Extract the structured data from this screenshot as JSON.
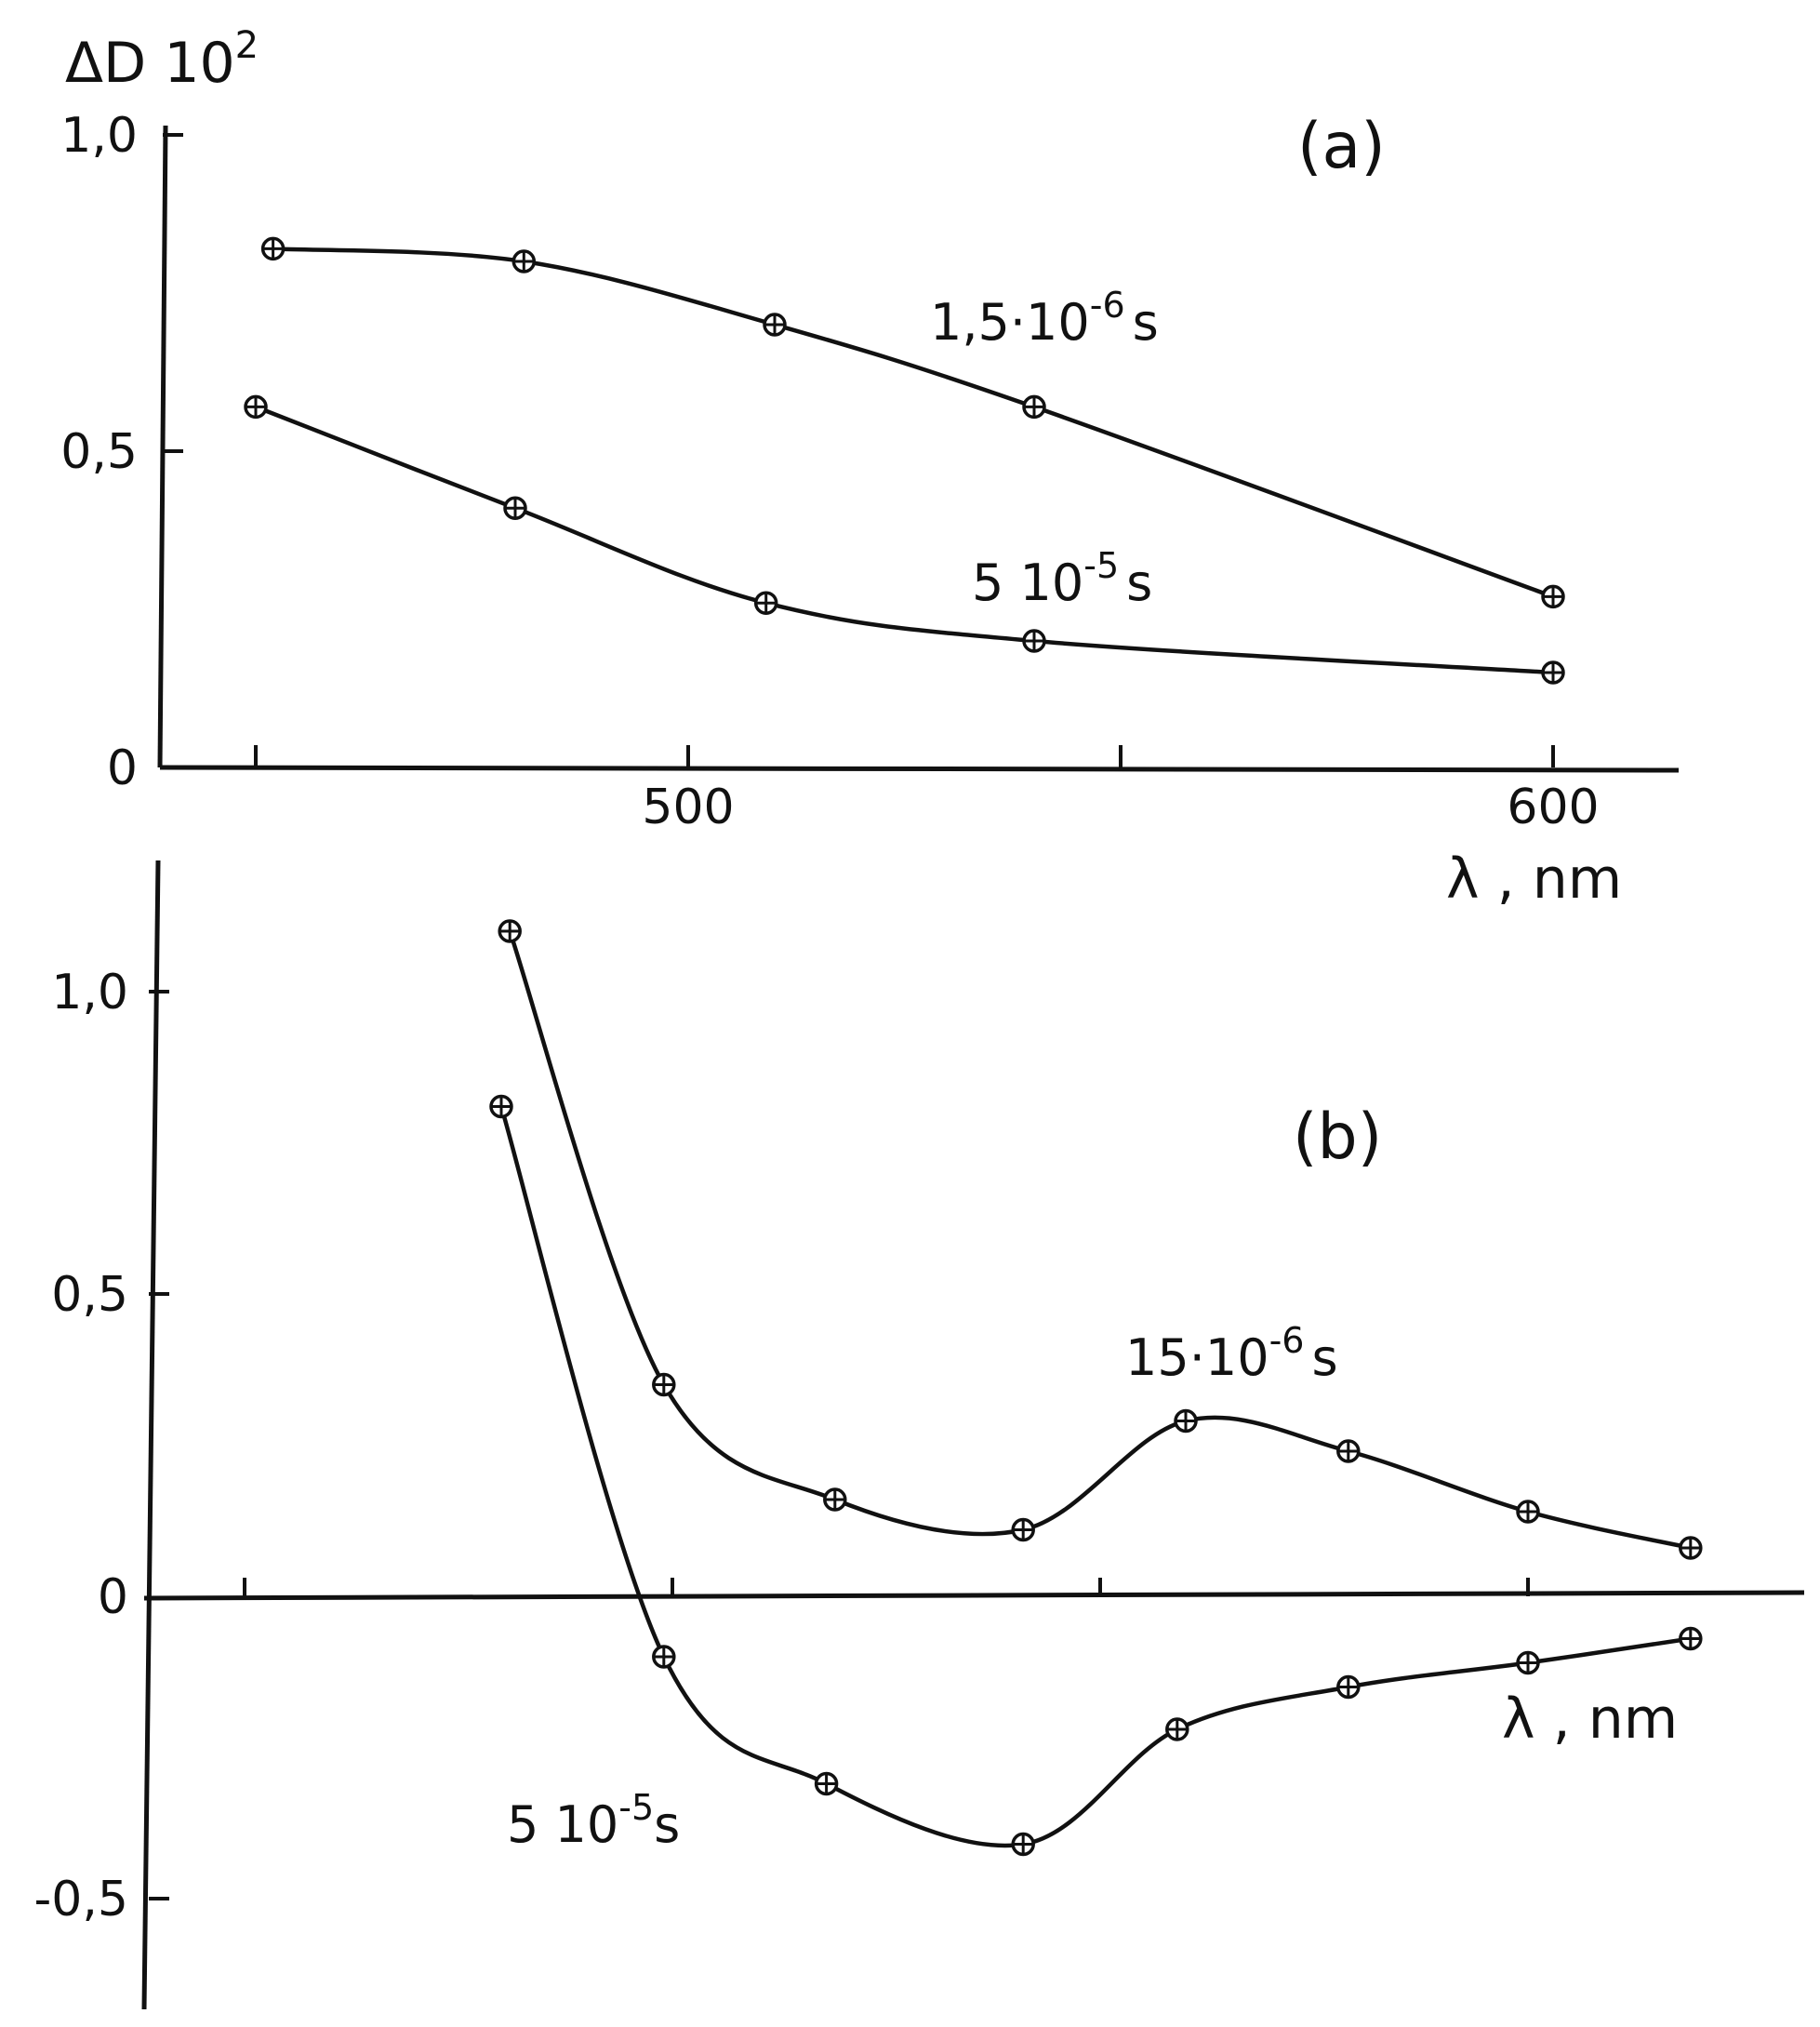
{
  "chart_data": [
    {
      "type": "line",
      "panel_label": "(a)",
      "ylabel_text": "ΔD 10",
      "ylabel_exp": "2",
      "xlabel_text": "λ , nm",
      "x_ticks": [
        450,
        500,
        550,
        600
      ],
      "x_tick_labels": [
        {
          "x": 500,
          "label": "500"
        },
        {
          "x": 600,
          "label": "600"
        }
      ],
      "y_tick_labels": [
        {
          "y": 0,
          "label": "0"
        },
        {
          "y": 0.5,
          "label": "0,5"
        },
        {
          "y": 1.0,
          "label": "1,0"
        }
      ],
      "xlim": [
        440,
        615
      ],
      "ylim": [
        0,
        1.0
      ],
      "series": [
        {
          "name_main": "1,5·10",
          "name_exp": "-6",
          "name_unit": "s",
          "x": [
            452,
            481,
            510,
            540,
            600
          ],
          "y": [
            0.82,
            0.8,
            0.7,
            0.57,
            0.27
          ]
        },
        {
          "name_main": "5 10",
          "name_exp": "-5",
          "name_unit": "s",
          "x": [
            450,
            480,
            509,
            540,
            600
          ],
          "y": [
            0.57,
            0.41,
            0.26,
            0.2,
            0.15
          ]
        }
      ]
    },
    {
      "type": "line",
      "panel_label": "(b)",
      "xlabel_text": "λ , nm",
      "x_ticks": [
        450,
        500,
        550,
        600
      ],
      "y_tick_labels": [
        {
          "y": -0.5,
          "label": "-0,5"
        },
        {
          "y": 0,
          "label": "0"
        },
        {
          "y": 0.5,
          "label": "0,5"
        },
        {
          "y": 1.0,
          "label": "1,0"
        }
      ],
      "xlim": [
        440,
        619
      ],
      "ylim": [
        -0.55,
        1.1
      ],
      "series": [
        {
          "name_main": "15·10",
          "name_exp": "-6",
          "name_unit": "s",
          "x": [
            481,
            499,
            519,
            541,
            560,
            579,
            600,
            619
          ],
          "y": [
            1.1,
            0.35,
            0.16,
            0.11,
            0.29,
            0.24,
            0.14,
            0.08
          ]
        },
        {
          "name_main": "5 10",
          "name_exp": "-5",
          "name_unit": "s",
          "x": [
            480,
            499,
            518,
            541,
            559,
            579,
            600,
            619
          ],
          "y": [
            0.81,
            -0.1,
            -0.31,
            -0.41,
            -0.22,
            -0.15,
            -0.11,
            -0.07
          ]
        }
      ]
    }
  ]
}
